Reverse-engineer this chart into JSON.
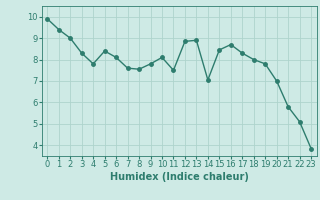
{
  "x": [
    0,
    1,
    2,
    3,
    4,
    5,
    6,
    7,
    8,
    9,
    10,
    11,
    12,
    13,
    14,
    15,
    16,
    17,
    18,
    19,
    20,
    21,
    22,
    23
  ],
  "y": [
    9.9,
    9.4,
    9.0,
    8.3,
    7.8,
    8.4,
    8.1,
    7.6,
    7.55,
    7.8,
    8.1,
    7.5,
    8.85,
    8.9,
    7.05,
    8.45,
    8.7,
    8.3,
    8.0,
    7.8,
    7.0,
    5.8,
    5.1,
    3.85
  ],
  "line_color": "#2e7d6e",
  "marker": "o",
  "marker_size": 2.5,
  "line_width": 1.0,
  "bg_color": "#ceeae5",
  "grid_color": "#aed4cc",
  "xlabel": "Humidex (Indice chaleur)",
  "xlabel_fontsize": 7,
  "tick_fontsize": 6,
  "ylim": [
    3.5,
    10.5
  ],
  "xlim": [
    -0.5,
    23.5
  ],
  "yticks": [
    4,
    5,
    6,
    7,
    8,
    9,
    10
  ],
  "xticks": [
    0,
    1,
    2,
    3,
    4,
    5,
    6,
    7,
    8,
    9,
    10,
    11,
    12,
    13,
    14,
    15,
    16,
    17,
    18,
    19,
    20,
    21,
    22,
    23
  ]
}
